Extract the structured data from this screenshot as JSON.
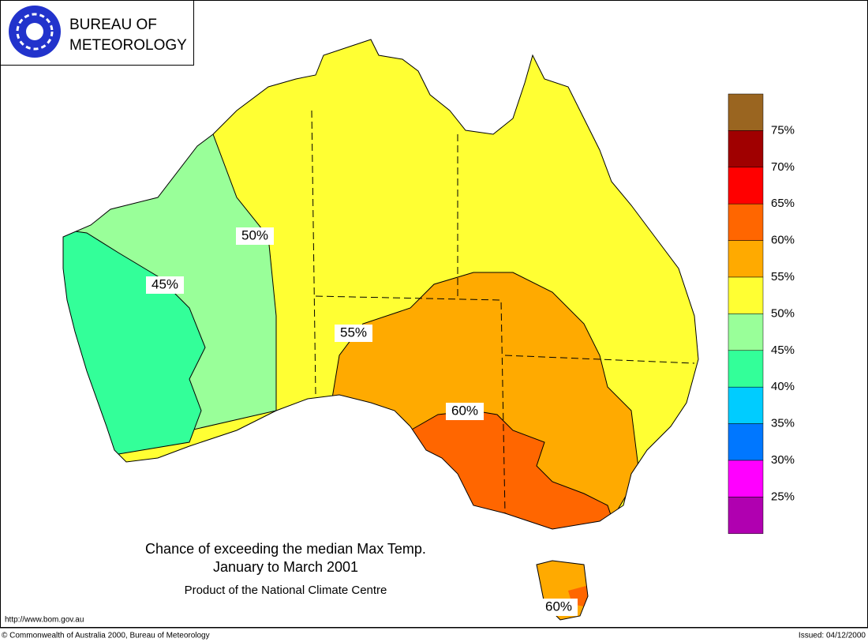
{
  "header": {
    "line1": "BUREAU OF",
    "line2": "METEOROLOGY"
  },
  "map_labels": [
    "50%",
    "45%",
    "55%",
    "60%",
    "60%"
  ],
  "legend": {
    "colors": [
      "#9a6520",
      "#a00000",
      "#ff0000",
      "#ff6600",
      "#ffaa00",
      "#ffff33",
      "#99ff99",
      "#33ff99",
      "#00ccff",
      "#0077ff",
      "#ff00ff",
      "#b000b0"
    ],
    "labels": [
      "75%",
      "70%",
      "65%",
      "60%",
      "55%",
      "50%",
      "45%",
      "40%",
      "35%",
      "30%",
      "25%"
    ]
  },
  "title": [
    "Chance of exceeding the median Max Temp.",
    "January to March 2001",
    "Product of the National Climate Centre"
  ],
  "footer": {
    "url": "http://www.bom.gov.au",
    "copyright": "© Commonwealth of Australia 2000, Bureau of Meteorology",
    "issued": "Issued: 04/12/2000"
  }
}
